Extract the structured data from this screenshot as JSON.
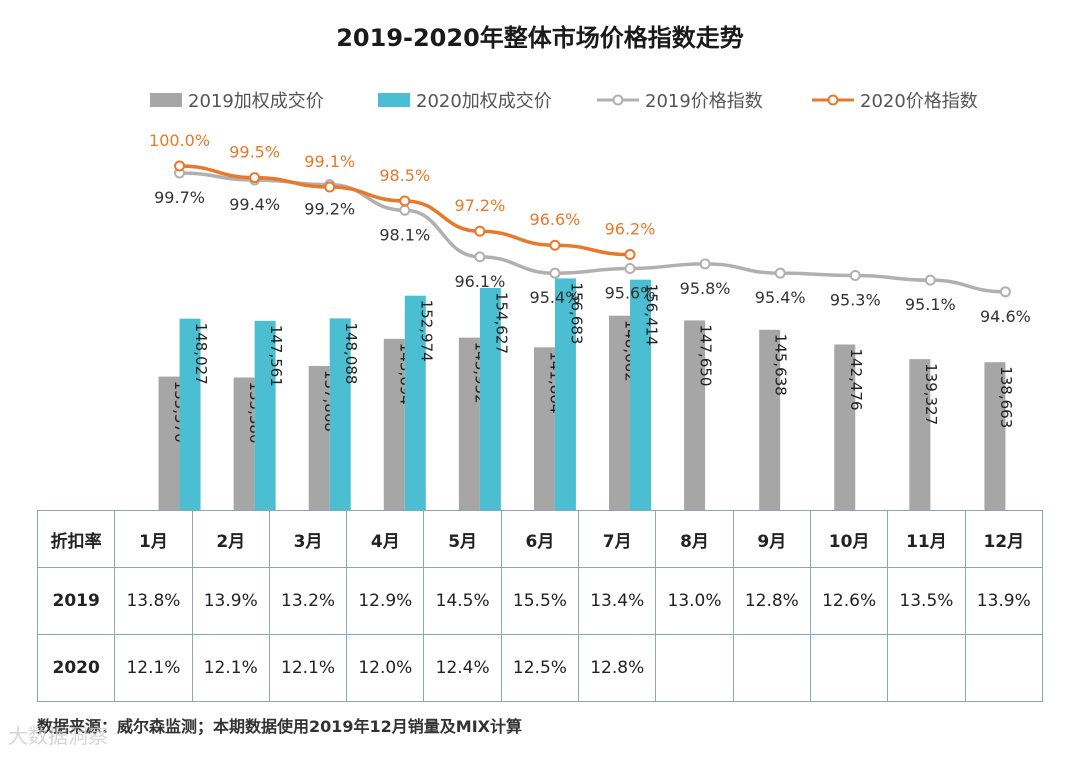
{
  "chart_data": {
    "type": "bar",
    "title": "2019-2020年整体市场价格指数走势",
    "legend": {
      "placement": "top",
      "items": [
        {
          "name": "2019加权成交价",
          "kind": "bar",
          "color": "#a6a6a6"
        },
        {
          "name": "2020加权成交价",
          "kind": "bar",
          "color": "#4bbfd1"
        },
        {
          "name": "2019价格指数",
          "kind": "line",
          "color": "#b0b0b0"
        },
        {
          "name": "2020价格指数",
          "kind": "line",
          "color": "#e8782a"
        }
      ]
    },
    "categories": [
      "1月",
      "2月",
      "3月",
      "4月",
      "5月",
      "6月",
      "7月",
      "8月",
      "9月",
      "10月",
      "11月",
      "12月"
    ],
    "bar_series": [
      {
        "name": "2019加权成交价",
        "color": "#a6a6a6",
        "values": [
          135570,
          135380,
          137868,
          143694,
          143952,
          141864,
          148662,
          147650,
          145638,
          142476,
          139327,
          138663
        ],
        "labels": [
          "135,570",
          "135,380",
          "137,868",
          "143,694",
          "143,952",
          "141,864",
          "148,662",
          "147,650",
          "145,638",
          "142,476",
          "139,327",
          "138,663"
        ]
      },
      {
        "name": "2020加权成交价",
        "color": "#4bbfd1",
        "values": [
          148027,
          147561,
          148088,
          152974,
          154627,
          156683,
          156414
        ],
        "labels": [
          "148,027",
          "147,561",
          "148,088",
          "152,974",
          "154,627",
          "156,683",
          "156,414"
        ]
      }
    ],
    "line_series": [
      {
        "name": "2019价格指数",
        "color": "#b0b0b0",
        "values": [
          99.7,
          99.4,
          99.2,
          98.1,
          96.1,
          95.4,
          95.6,
          95.8,
          95.4,
          95.3,
          95.1,
          94.6
        ],
        "labels": [
          "99.7%",
          "99.4%",
          "99.2%",
          "98.1%",
          "96.1%",
          "95.4%",
          "95.6%",
          "95.8%",
          "95.4%",
          "95.3%",
          "95.1%",
          "94.6%"
        ]
      },
      {
        "name": "2020价格指数",
        "color": "#e8782a",
        "values": [
          100.0,
          99.5,
          99.1,
          98.5,
          97.2,
          96.6,
          96.2
        ],
        "labels": [
          "100.0%",
          "99.5%",
          "99.1%",
          "98.5%",
          "97.2%",
          "96.6%",
          "96.2%"
        ]
      }
    ]
  },
  "discount_table": {
    "header_label": "折扣率",
    "columns": [
      "1月",
      "2月",
      "3月",
      "4月",
      "5月",
      "6月",
      "7月",
      "8月",
      "9月",
      "10月",
      "11月",
      "12月"
    ],
    "rows": [
      {
        "label": "2019",
        "values": [
          "13.8%",
          "13.9%",
          "13.2%",
          "12.9%",
          "14.5%",
          "15.5%",
          "13.4%",
          "13.0%",
          "12.8%",
          "12.6%",
          "13.5%",
          "13.9%"
        ]
      },
      {
        "label": "2020",
        "values": [
          "12.1%",
          "12.1%",
          "12.1%",
          "12.0%",
          "12.4%",
          "12.5%",
          "12.8%",
          "",
          "",
          "",
          "",
          ""
        ]
      }
    ]
  },
  "source_note": "数据来源：威尔森监测；本期数据使用2019年12月销量及MIX计算",
  "watermark": "大数据洞察"
}
